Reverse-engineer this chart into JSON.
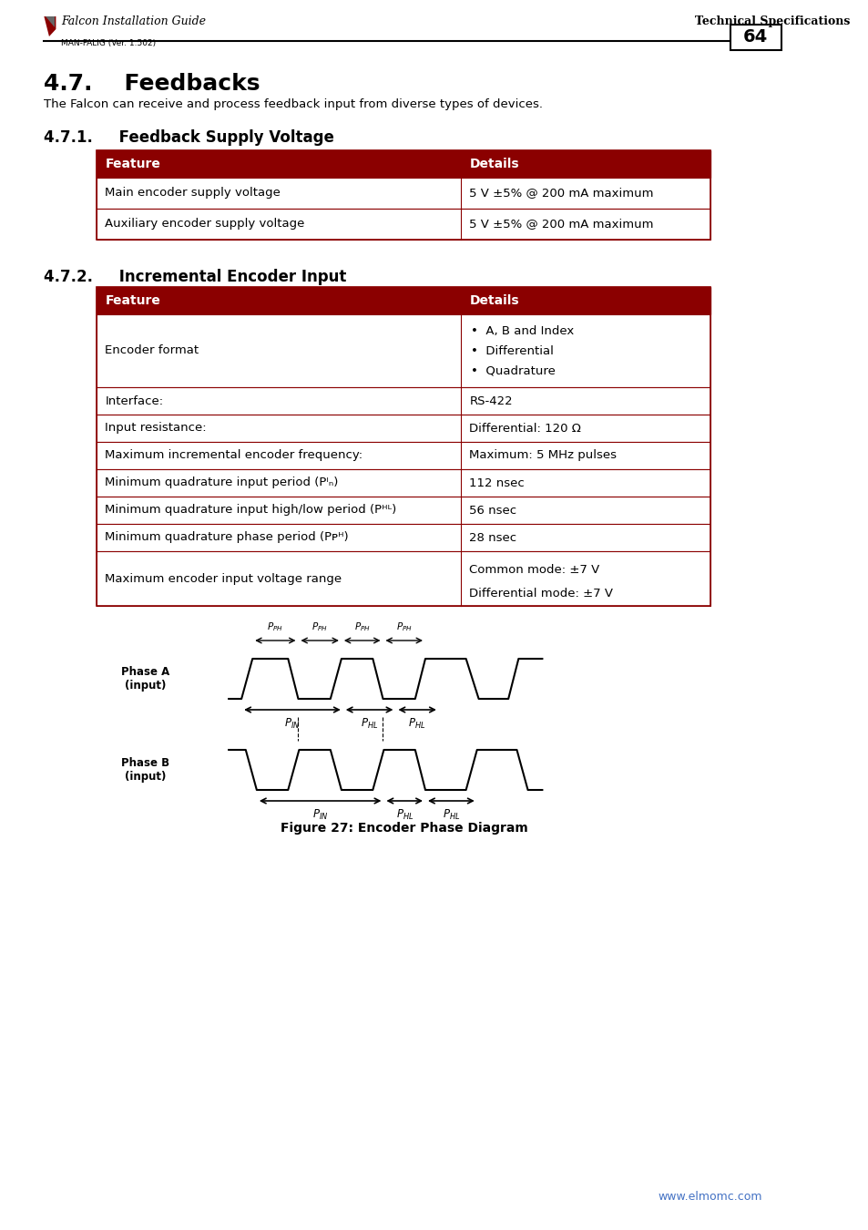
{
  "page_num": "64",
  "header_left": "Falcon Installation Guide",
  "header_right": "Technical Specifications",
  "header_sub": "MAN-FALIG (Ver. 1.502)",
  "section_47": "4.7.    Feedbacks",
  "section_47_text": "The Falcon can receive and process feedback input from diverse types of devices.",
  "section_471": "4.7.1.     Feedback Supply Voltage",
  "table1_headers": [
    "Feature",
    "Details"
  ],
  "table1_rows": [
    [
      "Main encoder supply voltage",
      "5 V ±5% @ 200 mA maximum"
    ],
    [
      "Auxiliary encoder supply voltage",
      "5 V ±5% @ 200 mA maximum"
    ]
  ],
  "section_472": "4.7.2.     Incremental Encoder Input",
  "table2_headers": [
    "Feature",
    "Details"
  ],
  "table2_rows": [
    [
      "Encoder format",
      "bullet:A, B and Index|Differential|Quadrature"
    ],
    [
      "Interface:",
      "RS-422"
    ],
    [
      "Input resistance:",
      "Differential: 120 Ω"
    ],
    [
      "Maximum incremental encoder frequency:",
      "Maximum: 5 MHz pulses"
    ],
    [
      "Minimum quadrature input period (Pᴵₙ)",
      "112 nsec"
    ],
    [
      "Minimum quadrature input high/low period (Pᴴᴸ)",
      "56 nsec"
    ],
    [
      "Minimum quadrature phase period (Pᴘᴴ)",
      "28 nsec"
    ],
    [
      "Maximum encoder input voltage range",
      "twolines:Common mode: ±7 V|Differential mode: ±7 V"
    ]
  ],
  "figure_caption": "Figure 27: Encoder Phase Diagram",
  "footer_url": "www.elmomc.com",
  "header_color": "#8B0000",
  "header_text_color": "#FFFFFF",
  "border_color": "#8B0000",
  "row_border_color": "#8B0000",
  "bg_color": "#FFFFFF",
  "title_color": "#000000"
}
